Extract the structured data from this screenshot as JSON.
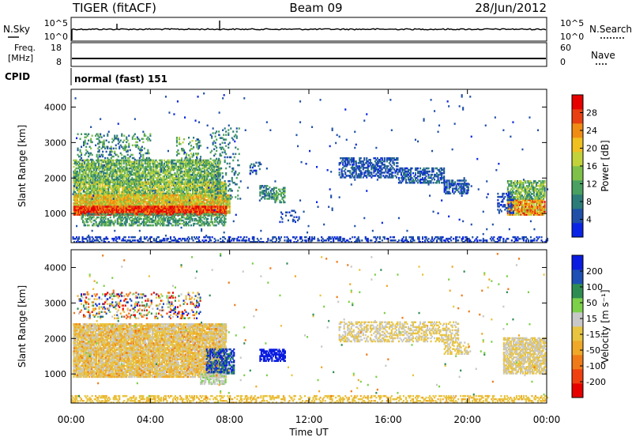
{
  "header": {
    "station": "TIGER (fitACF)",
    "beam": "Beam 09",
    "date": "28/Jun/2012"
  },
  "noise_panel": {
    "left_label": "N.Sky",
    "right_label": "N.Search",
    "left_ticks": [
      "10^5",
      "10^0"
    ],
    "right_ticks": [
      "10^5",
      "10^0"
    ]
  },
  "freq_panel": {
    "left_label_1": "Freq.",
    "left_label_2": "[MHz]",
    "right_label": "Nave",
    "left_ticks": [
      "18",
      "8"
    ],
    "right_ticks": [
      "60",
      "0"
    ]
  },
  "cpid": {
    "label": "CPID",
    "value": "normal (fast) 151"
  },
  "chart_data": [
    {
      "type": "heatmap",
      "quantity": "Power",
      "ylabel": "Slant Range [km]",
      "xlabel": "",
      "yticks": [
        "4000",
        "3000",
        "2000",
        "1000"
      ],
      "xticks": [],
      "ylim": [
        180,
        4500
      ],
      "xlim": [
        0,
        24
      ],
      "colorbar": {
        "label": "Power [dB]",
        "ticks": [
          "28",
          "24",
          "20",
          "16",
          "12",
          "8",
          "4"
        ],
        "range": [
          0,
          30
        ],
        "colors": [
          "#0a24e6",
          "#2050a8",
          "#2c7c7a",
          "#4aa060",
          "#7ec04a",
          "#c2d23a",
          "#f0c020",
          "#f08c14",
          "#e84010",
          "#e60000"
        ]
      },
      "regions": [
        {
          "t0": 0.1,
          "t1": 7.5,
          "r0": 1850,
          "r1": 2500,
          "dens": 0.75,
          "vmin": 6,
          "vmax": 18
        },
        {
          "t0": 0.1,
          "t1": 7.8,
          "r0": 1500,
          "r1": 1900,
          "dens": 0.8,
          "vmin": 8,
          "vmax": 20
        },
        {
          "t0": 0.1,
          "t1": 8.0,
          "r0": 1000,
          "r1": 1500,
          "dens": 0.92,
          "vmin": 12,
          "vmax": 24
        },
        {
          "t0": 0.1,
          "t1": 7.8,
          "r0": 950,
          "r1": 1200,
          "dens": 0.95,
          "vmin": 22,
          "vmax": 30
        },
        {
          "t0": 0.5,
          "t1": 7.8,
          "r0": 650,
          "r1": 1000,
          "dens": 0.55,
          "vmin": 6,
          "vmax": 14
        },
        {
          "t0": 0.3,
          "t1": 4.0,
          "r0": 2500,
          "r1": 3250,
          "dens": 0.25,
          "vmin": 4,
          "vmax": 14
        },
        {
          "t0": 5.3,
          "t1": 6.5,
          "r0": 2400,
          "r1": 3150,
          "dens": 0.2,
          "vmin": 6,
          "vmax": 16
        },
        {
          "t0": 7.0,
          "t1": 8.5,
          "r0": 1400,
          "r1": 3400,
          "dens": 0.15,
          "vmin": 4,
          "vmax": 12
        },
        {
          "t0": 9.5,
          "t1": 10.2,
          "r0": 1400,
          "r1": 1800,
          "dens": 0.55,
          "vmin": 4,
          "vmax": 12
        },
        {
          "t0": 10.2,
          "t1": 10.8,
          "r0": 1300,
          "r1": 1750,
          "dens": 0.5,
          "vmin": 6,
          "vmax": 14
        },
        {
          "t0": 9.0,
          "t1": 9.6,
          "r0": 2100,
          "r1": 2450,
          "dens": 0.3,
          "vmin": 2,
          "vmax": 8
        },
        {
          "t0": 10.5,
          "t1": 11.5,
          "r0": 700,
          "r1": 1100,
          "dens": 0.18,
          "vmin": 2,
          "vmax": 6
        },
        {
          "t0": 13.5,
          "t1": 16.5,
          "r0": 2000,
          "r1": 2550,
          "dens": 0.5,
          "vmin": 2,
          "vmax": 7
        },
        {
          "t0": 16.5,
          "t1": 18.8,
          "r0": 1850,
          "r1": 2300,
          "dens": 0.55,
          "vmin": 2,
          "vmax": 8
        },
        {
          "t0": 18.8,
          "t1": 20.0,
          "r0": 1550,
          "r1": 1950,
          "dens": 0.55,
          "vmin": 2,
          "vmax": 8
        },
        {
          "t0": 22.0,
          "t1": 23.9,
          "r0": 950,
          "r1": 1400,
          "dens": 0.9,
          "vmin": 14,
          "vmax": 28
        },
        {
          "t0": 22.0,
          "t1": 23.9,
          "r0": 1400,
          "r1": 1900,
          "dens": 0.7,
          "vmin": 6,
          "vmax": 18
        },
        {
          "t0": 21.5,
          "t1": 22.3,
          "r0": 1000,
          "r1": 1600,
          "dens": 0.35,
          "vmin": 2,
          "vmax": 6
        },
        {
          "t0": 0.0,
          "t1": 24.0,
          "r0": 180,
          "r1": 350,
          "dens": 0.35,
          "vmin": 1,
          "vmax": 6
        },
        {
          "t0": 0.0,
          "t1": 24.0,
          "r0": 180,
          "r1": 4400,
          "dens": 0.006,
          "vmin": 2,
          "vmax": 6
        }
      ]
    },
    {
      "type": "heatmap",
      "quantity": "Velocity",
      "ylabel": "Slant Range [km]",
      "xlabel": "Time UT",
      "yticks": [
        "4000",
        "3000",
        "2000",
        "1000"
      ],
      "xticks": [
        "00:00",
        "04:00",
        "08:00",
        "12:00",
        "16:00",
        "20:00",
        "00:00"
      ],
      "ylim": [
        180,
        4500
      ],
      "xlim": [
        0,
        24
      ],
      "colorbar": {
        "label": "Velocity [m s⁻¹]",
        "ticks": [
          "200",
          "100",
          "50",
          "15",
          "-15",
          "-50",
          "-100",
          "-200"
        ],
        "colors": [
          "#e60000",
          "#f04010",
          "#f07a18",
          "#f0a828",
          "#e8c440",
          "#c8c8c8",
          "#7cd04a",
          "#2e8c52",
          "#1e4fb4",
          "#0a1ce0"
        ]
      },
      "regions": [
        {
          "t0": 0.1,
          "t1": 7.8,
          "r0": 900,
          "r1": 2400,
          "dens": 0.85,
          "vmin": -25,
          "vmax": 25
        },
        {
          "t0": 0.1,
          "t1": 7.5,
          "r0": 900,
          "r1": 2400,
          "dens": 0.25,
          "vmin": -110,
          "vmax": -20
        },
        {
          "t0": 6.8,
          "t1": 8.2,
          "r0": 1000,
          "r1": 1700,
          "dens": 0.6,
          "vmin": 100,
          "vmax": 260
        },
        {
          "t0": 6.5,
          "t1": 7.8,
          "r0": 700,
          "r1": 1000,
          "dens": 0.6,
          "vmin": 20,
          "vmax": 60
        },
        {
          "t0": 0.3,
          "t1": 6.5,
          "r0": 2550,
          "r1": 3300,
          "dens": 0.22,
          "vmin": -250,
          "vmax": 250
        },
        {
          "t0": 9.5,
          "t1": 10.8,
          "r0": 1350,
          "r1": 1700,
          "dens": 0.7,
          "vmin": 200,
          "vmax": 280
        },
        {
          "t0": 13.5,
          "t1": 19.5,
          "r0": 1900,
          "r1": 2450,
          "dens": 0.45,
          "vmin": -20,
          "vmax": 20
        },
        {
          "t0": 18.8,
          "t1": 20.0,
          "r0": 1550,
          "r1": 1900,
          "dens": 0.45,
          "vmin": -30,
          "vmax": 15
        },
        {
          "t0": 21.8,
          "t1": 23.9,
          "r0": 1000,
          "r1": 2000,
          "dens": 0.75,
          "vmin": -20,
          "vmax": 20
        },
        {
          "t0": 0.0,
          "t1": 24.0,
          "r0": 180,
          "r1": 400,
          "dens": 0.4,
          "vmin": -60,
          "vmax": -10
        },
        {
          "t0": 0.0,
          "t1": 24.0,
          "r0": 180,
          "r1": 4400,
          "dens": 0.006,
          "vmin": -150,
          "vmax": 150
        }
      ]
    }
  ]
}
